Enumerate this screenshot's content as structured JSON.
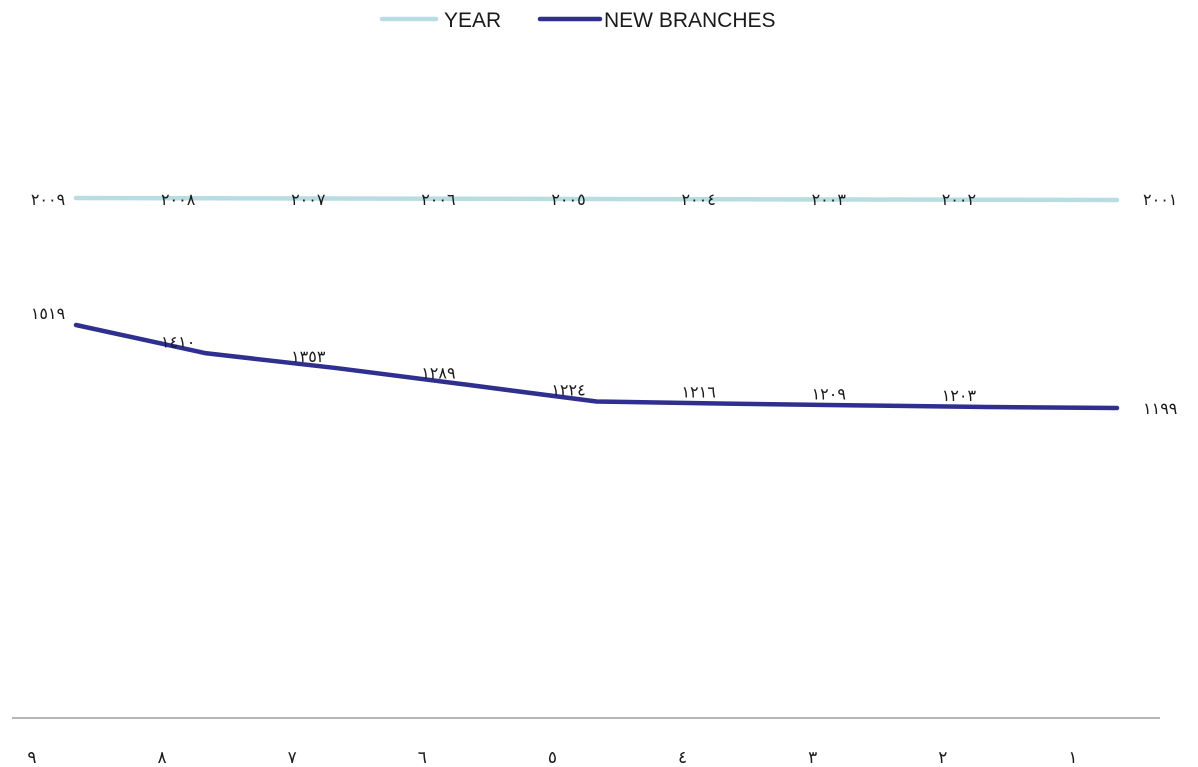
{
  "chart_data": {
    "type": "line",
    "categories": [
      "١",
      "٢",
      "٣",
      "٤",
      "٥",
      "٦",
      "٧",
      "٨",
      "٩"
    ],
    "series": [
      {
        "name": "YEAR",
        "color": "#b7dde2",
        "values": [
          2001,
          2002,
          2003,
          2004,
          2005,
          2006,
          2007,
          2008,
          2009
        ],
        "labels": [
          "٢٠٠١",
          "٢٠٠٢",
          "٢٠٠٣",
          "٢٠٠٤",
          "٢٠٠٥",
          "٢٠٠٦",
          "٢٠٠٧",
          "٢٠٠٨",
          "٢٠٠٩"
        ]
      },
      {
        "name": "NEW BRANCHES",
        "color": "#2f2f8f",
        "values": [
          1199,
          1203,
          1209,
          1216,
          1224,
          1289,
          1353,
          1410,
          1519
        ],
        "labels": [
          "١١٩٩",
          "١٢٠٣",
          "١٢٠٩",
          "١٢١٦",
          "١٢٢٤",
          "١٢٨٩",
          "١٣٥٣",
          "١٤١٠",
          "١٥١٩"
        ]
      }
    ],
    "legend_position": "top",
    "x_direction": "right-to-left",
    "grid": false
  }
}
